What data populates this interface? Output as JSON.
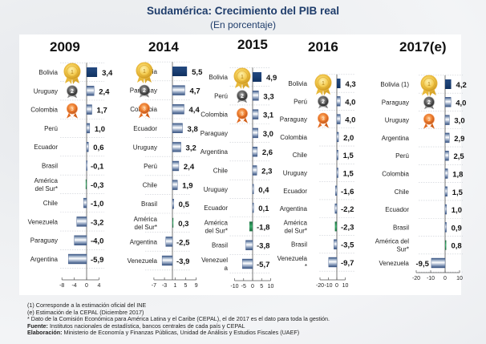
{
  "header": {
    "title": "Sudamérica: Crecimiento del PIB real",
    "subtitle": "(En porcentaje)"
  },
  "chart_data": [
    {
      "type": "bar",
      "orientation": "horizontal",
      "title": "2009",
      "categories": [
        "Bolivia",
        "Uruguay",
        "Colombia",
        "Perú",
        "Ecuador",
        "Brasil",
        "América del Sur*",
        "Chile",
        "Venezuela",
        "Paraguay",
        "Argentina"
      ],
      "values": [
        3.4,
        2.4,
        1.7,
        1.0,
        0.6,
        -0.1,
        -0.3,
        -1.0,
        -3.2,
        -4.0,
        -5.9
      ],
      "value_labels": [
        "3,4",
        "2,4",
        "1,7",
        "1,0",
        "0,6",
        "-0,1",
        "-0,3",
        "-1,0",
        "-3,2",
        "-4,0",
        "-5,9"
      ],
      "xticks": [
        -8,
        -4,
        0,
        4
      ],
      "xlim": [
        -8,
        6
      ],
      "medals": [
        "gold",
        "silver",
        "bronze"
      ],
      "highlight": "América del Sur*"
    },
    {
      "type": "bar",
      "orientation": "horizontal",
      "title": "2014",
      "categories": [
        "Bolivia",
        "Paraguay",
        "Colombia",
        "Ecuador",
        "Uruguay",
        "Perú",
        "Chile",
        "Brasil",
        "América del Sur*",
        "Argentina",
        "Venezuela"
      ],
      "values": [
        5.5,
        4.7,
        4.4,
        3.8,
        3.2,
        2.4,
        1.9,
        0.5,
        0.3,
        -2.5,
        -3.9
      ],
      "value_labels": [
        "5,5",
        "4,7",
        "4,4",
        "3,8",
        "3,2",
        "2,4",
        "1,9",
        "0,5",
        "0,3",
        "-2,5",
        "-3,9"
      ],
      "xticks": [
        -7,
        -3,
        1,
        5,
        9
      ],
      "xlim": [
        -7,
        10
      ],
      "medals": [
        "gold",
        "silver",
        "bronze"
      ],
      "highlight": "América del Sur*"
    },
    {
      "type": "bar",
      "orientation": "horizontal",
      "title": "2015",
      "categories": [
        "Bolivia",
        "Perú",
        "Colombia",
        "Paraguay",
        "Argentina",
        "Chile",
        "Uruguay",
        "Ecuador",
        "América del Sur*",
        "Brasil",
        "Venezuela"
      ],
      "values": [
        4.9,
        3.3,
        3.1,
        3.0,
        2.6,
        2.3,
        0.4,
        0.1,
        -1.8,
        -3.8,
        -5.7
      ],
      "value_labels": [
        "4,9",
        "3,3",
        "3,1",
        "3,0",
        "2,6",
        "2,3",
        "0,4",
        "0,1",
        "-1,8",
        "-3,8",
        "-5,7"
      ],
      "xticks": [
        -10,
        -5,
        0,
        5,
        10
      ],
      "xlim": [
        -10,
        10
      ],
      "medals": [
        "gold",
        "silver",
        "bronze"
      ],
      "highlight": "América del Sur*"
    },
    {
      "type": "bar",
      "orientation": "horizontal",
      "title": "2016",
      "categories": [
        "Bolivia",
        "Perú",
        "Paraguay",
        "Colombia",
        "Chile",
        "Uruguay",
        "Ecuador",
        "Argentina",
        "América del Sur*",
        "Brasil",
        "Venezuela*"
      ],
      "values": [
        4.3,
        4.0,
        4.0,
        2.0,
        1.5,
        1.5,
        -1.6,
        -2.2,
        -2.3,
        -3.5,
        -9.7
      ],
      "value_labels": [
        "4,3",
        "4,0",
        "4,0",
        "2,0",
        "1,5",
        "1,5",
        "-1,6",
        "-2,2",
        "-2,3",
        "-3,5",
        "-9,7"
      ],
      "xticks": [
        -20,
        -10,
        0,
        10
      ],
      "xlim": [
        -20,
        10
      ],
      "medals": [
        "gold",
        "silver",
        "bronze"
      ],
      "highlight": "América del Sur*"
    },
    {
      "type": "bar",
      "orientation": "horizontal",
      "title": "2017(e)",
      "categories": [
        "Bolivia (1)",
        "Paraguay",
        "Uruguay",
        "Argentina",
        "Perú",
        "Colombia",
        "Chile",
        "Ecuador",
        "Brasil",
        "América del Sur*",
        "Venezuela"
      ],
      "values": [
        4.2,
        4.0,
        3.0,
        2.9,
        2.5,
        1.8,
        1.5,
        1.0,
        0.9,
        0.8,
        -9.5
      ],
      "value_labels": [
        "4,2",
        "4,0",
        "3,0",
        "2,9",
        "2,5",
        "1,8",
        "1,5",
        "1,0",
        "0,9",
        "0,8",
        "-9,5"
      ],
      "xticks": [
        -20,
        -10,
        0,
        10
      ],
      "xlim": [
        -20,
        10
      ],
      "medals": [
        "gold",
        "silver",
        "bronze"
      ],
      "highlight": "América del Sur*"
    }
  ],
  "colors": {
    "title": "#1f3d6b",
    "top_bar": "#1b3f73",
    "bar_dark": "#34507e",
    "bar_light": "#ffffff",
    "highlight": "#2a8a55"
  },
  "footnotes": {
    "note1": "(1) Corresponde a la estimación oficial del INE",
    "note2": "(e) Estimación de la CEPAL (Diciembre 2017)",
    "note3": "* Dato de la Comisión Económica para América Latina y el Caribe (CEPAL), el de 2017 es el dato para toda la gestión.",
    "source_label": "Fuente:",
    "source_text": " Institutos nacionales de estadística, bancos centrales de cada país y CEPAL",
    "elab_label": "Elaboración:",
    "elab_text": " Ministerio de Economía y Finanzas Públicas, Unidad de Análisis y Estudios Fiscales (UAEF)"
  }
}
